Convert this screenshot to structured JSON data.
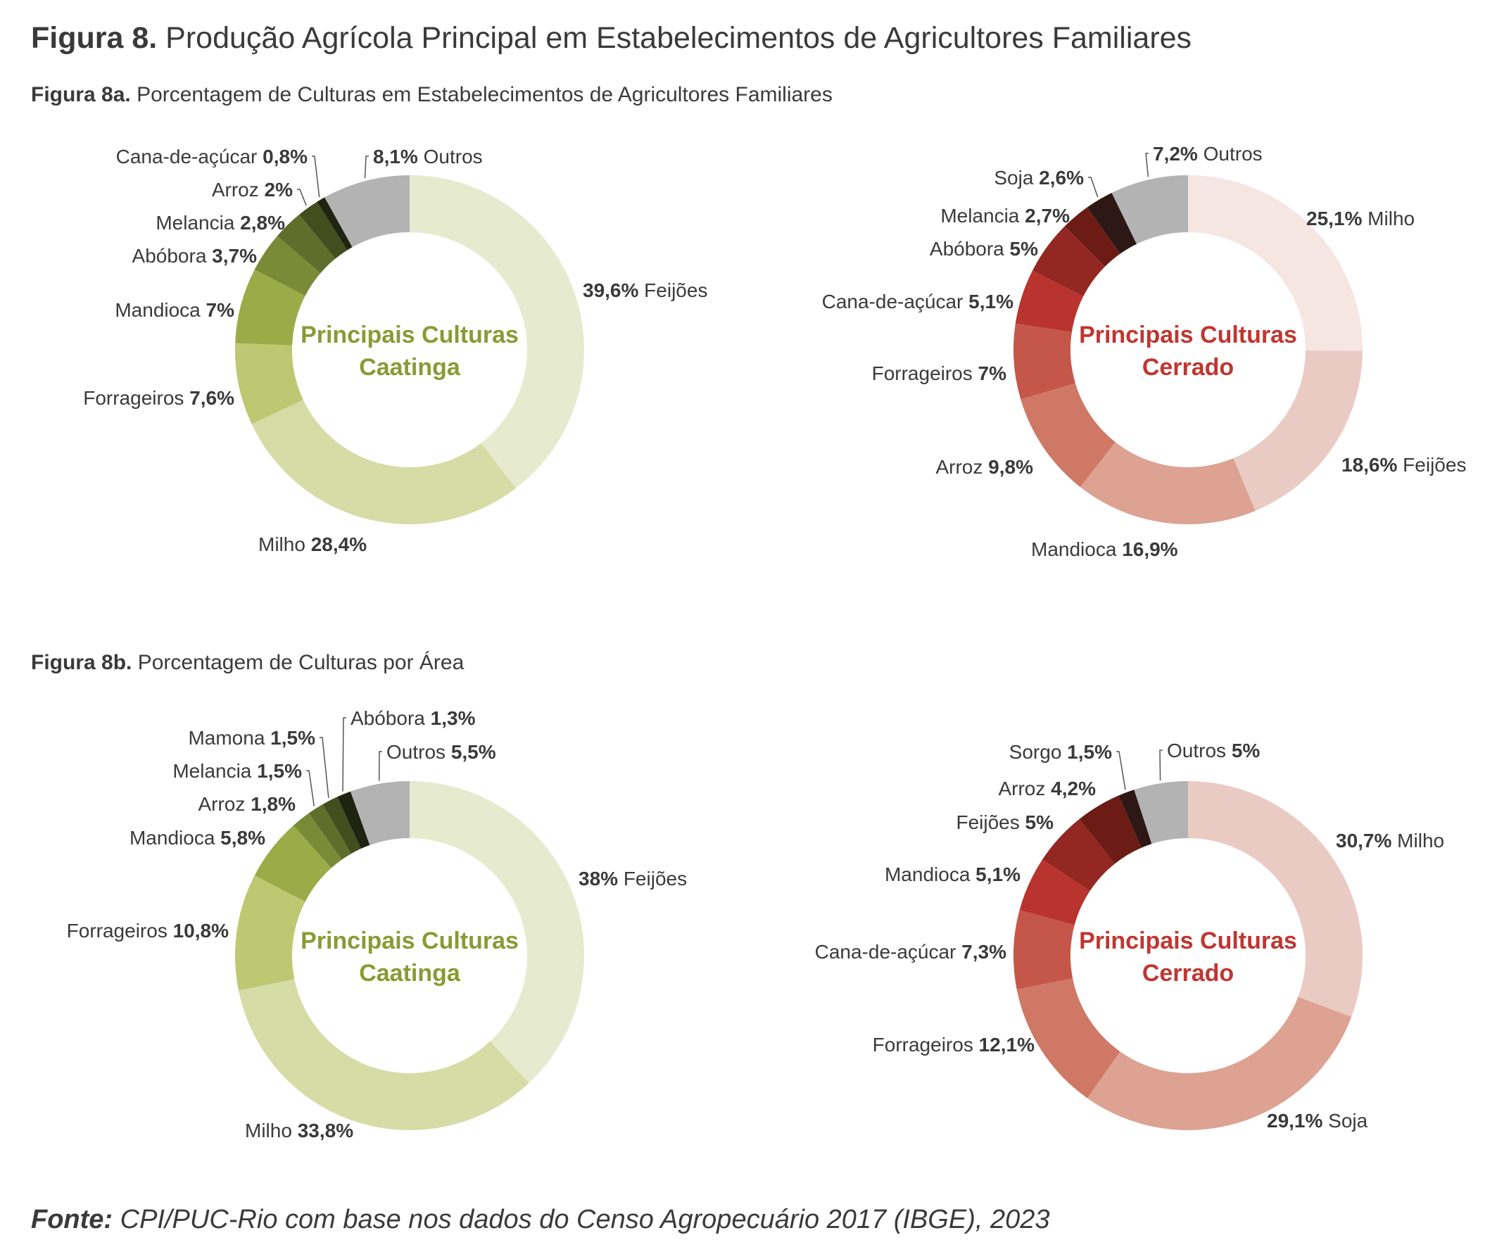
{
  "figure": {
    "title_bold": "Figura 8.",
    "title_text": "Produção Agrícola Principal em Estabelecimentos de Agricultores Familiares",
    "sub_a_bold": "Figura 8a.",
    "sub_a_text": "Porcentagem de Culturas em Estabelecimentos de Agricultores Familiares",
    "sub_b_bold": "Figura 8b.",
    "sub_b_text": "Porcentagem de Culturas por Área",
    "source_bold": "Fonte:",
    "source_text": "CPI/PUC-Rio com base nos dados do Censo Agropecuário 2017 (IBGE), 2023"
  },
  "chart_data": [
    {
      "type": "pie",
      "id": "a-caatinga",
      "center_label": [
        "Principais Culturas",
        "Caatinga"
      ],
      "center_color": "#8a9a34",
      "slices": [
        {
          "name": "Feijões",
          "value": 39.6,
          "label": "39,6%",
          "color": "#e6eacf"
        },
        {
          "name": "Milho",
          "value": 28.4,
          "label": "28,4%",
          "color": "#d6dca6"
        },
        {
          "name": "Forrageiros",
          "value": 7.6,
          "label": "7,6%",
          "color": "#bec872"
        },
        {
          "name": "Mandioca",
          "value": 7.0,
          "label": "7%",
          "color": "#9aab47"
        },
        {
          "name": "Abóbora",
          "value": 3.7,
          "label": "3,7%",
          "color": "#7a8a36"
        },
        {
          "name": "Melancia",
          "value": 2.8,
          "label": "2,8%",
          "color": "#5f6e2b"
        },
        {
          "name": "Arroz",
          "value": 2.0,
          "label": "2%",
          "color": "#434e1e"
        },
        {
          "name": "Cana-de-açúcar",
          "value": 0.8,
          "label": "0,8%",
          "color": "#1f2410"
        },
        {
          "name": "Outros",
          "value": 8.1,
          "label": "8,1%",
          "color": "#b3b3b3"
        }
      ]
    },
    {
      "type": "pie",
      "id": "a-cerrado",
      "center_label": [
        "Principais Culturas",
        "Cerrado"
      ],
      "center_color": "#bf3631",
      "slices": [
        {
          "name": "Milho",
          "value": 25.1,
          "label": "25,1%",
          "color": "#f5e6e2"
        },
        {
          "name": "Feijões",
          "value": 18.6,
          "label": "18,6%",
          "color": "#eacbc3"
        },
        {
          "name": "Mandioca",
          "value": 16.9,
          "label": "16,9%",
          "color": "#dda292"
        },
        {
          "name": "Arroz",
          "value": 9.8,
          "label": "9,8%",
          "color": "#cf7866"
        },
        {
          "name": "Forrageiros",
          "value": 7.0,
          "label": "7%",
          "color": "#c5574a"
        },
        {
          "name": "Cana-de-açúcar",
          "value": 5.1,
          "label": "5,1%",
          "color": "#b9332f"
        },
        {
          "name": "Abóbora",
          "value": 5.0,
          "label": "5%",
          "color": "#932722"
        },
        {
          "name": "Melancia",
          "value": 2.7,
          "label": "2,7%",
          "color": "#6c1c15"
        },
        {
          "name": "Soja",
          "value": 2.6,
          "label": "2,6%",
          "color": "#2d1816"
        },
        {
          "name": "Outros",
          "value": 7.2,
          "label": "7,2%",
          "color": "#b3b3b3"
        }
      ]
    },
    {
      "type": "pie",
      "id": "b-caatinga",
      "center_label": [
        "Principais Culturas",
        "Caatinga"
      ],
      "center_color": "#8a9a34",
      "slices": [
        {
          "name": "Feijões",
          "value": 38.0,
          "label": "38%",
          "color": "#e6eacf"
        },
        {
          "name": "Milho",
          "value": 33.8,
          "label": "33,8%",
          "color": "#d6dca6"
        },
        {
          "name": "Forrageiros",
          "value": 10.8,
          "label": "10,8%",
          "color": "#bec872"
        },
        {
          "name": "Mandioca",
          "value": 5.8,
          "label": "5,8%",
          "color": "#9aab47"
        },
        {
          "name": "Arroz",
          "value": 1.8,
          "label": "1,8%",
          "color": "#7a8a36"
        },
        {
          "name": "Melancia",
          "value": 1.5,
          "label": "1,5%",
          "color": "#5f6e2b"
        },
        {
          "name": "Mamona",
          "value": 1.5,
          "label": "1,5%",
          "color": "#434e1e"
        },
        {
          "name": "Abóbora",
          "value": 1.3,
          "label": "1,3%",
          "color": "#1f2410"
        },
        {
          "name": "Outros",
          "value": 5.5,
          "label": "5,5%",
          "color": "#b3b3b3"
        }
      ]
    },
    {
      "type": "pie",
      "id": "b-cerrado",
      "center_label": [
        "Principais Culturas",
        "Cerrado"
      ],
      "center_color": "#bf3631",
      "slices": [
        {
          "name": "Milho",
          "value": 30.7,
          "label": "30,7%",
          "color": "#eacbc3"
        },
        {
          "name": "Soja",
          "value": 29.1,
          "label": "29,1%",
          "color": "#dda292"
        },
        {
          "name": "Forrageiros",
          "value": 12.1,
          "label": "12,1%",
          "color": "#cf7866"
        },
        {
          "name": "Cana-de-açúcar",
          "value": 7.3,
          "label": "7,3%",
          "color": "#c5574a"
        },
        {
          "name": "Mandioca",
          "value": 5.1,
          "label": "5,1%",
          "color": "#b9332f"
        },
        {
          "name": "Feijões",
          "value": 5.0,
          "label": "5%",
          "color": "#932722"
        },
        {
          "name": "Arroz",
          "value": 4.2,
          "label": "4,2%",
          "color": "#6c1c15"
        },
        {
          "name": "Sorgo",
          "value": 1.5,
          "label": "1,5%",
          "color": "#2d1816"
        },
        {
          "name": "Outros",
          "value": 5.0,
          "label": "5%",
          "color": "#b3b3b3"
        }
      ]
    }
  ]
}
